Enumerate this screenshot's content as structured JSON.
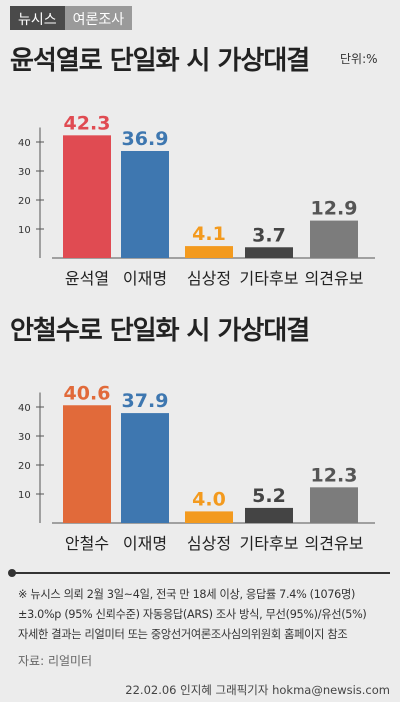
{
  "header": {
    "brand": "뉴시스",
    "category": "여론조사"
  },
  "unit_label": "단위:%",
  "chart_data": [
    {
      "type": "bar",
      "title": "윤석열로 단일화 시 가상대결",
      "categories": [
        "윤석열",
        "이재명",
        "심상정",
        "기타후보",
        "의견유보"
      ],
      "values": [
        42.3,
        36.9,
        4.1,
        3.7,
        12.9
      ],
      "value_labels": [
        "42.3",
        "36.9",
        "4.1",
        "3.7",
        "12.9"
      ],
      "colors": [
        "#e04b52",
        "#3e77b0",
        "#f39a1e",
        "#444444",
        "#7c7c7c"
      ],
      "value_colors": [
        "#e04b52",
        "#3e77b0",
        "#f39a1e",
        "#444444",
        "#555555"
      ],
      "yticks": [
        10,
        20,
        30,
        40
      ],
      "ylim": [
        0,
        45
      ],
      "grid": false
    },
    {
      "type": "bar",
      "title": "안철수로 단일화 시 가상대결",
      "categories": [
        "안철수",
        "이재명",
        "심상정",
        "기타후보",
        "의견유보"
      ],
      "values": [
        40.6,
        37.9,
        4.0,
        5.2,
        12.3
      ],
      "value_labels": [
        "40.6",
        "37.9",
        "4.0",
        "5.2",
        "12.3"
      ],
      "colors": [
        "#e16a3a",
        "#3e77b0",
        "#f39a1e",
        "#444444",
        "#7c7c7c"
      ],
      "value_colors": [
        "#e16a3a",
        "#3e77b0",
        "#f39a1e",
        "#444444",
        "#555555"
      ],
      "yticks": [
        10,
        20,
        30,
        40
      ],
      "ylim": [
        0,
        45
      ],
      "grid": false
    }
  ],
  "notes": [
    "※ 뉴시스 의뢰 2월 3일~4일, 전국 만 18세 이상, 응답률 7.4% (1076명)",
    "±3.0%p (95% 신뢰수준) 자동응답(ARS) 조사 방식, 무선(95%)/유선(5%)",
    "자세한 결과는 리얼미터 또는 중앙선거여론조사심의위원회 홈페이지 참조"
  ],
  "source": "자료: 리얼미터",
  "credit": "22.02.06 인지혜 그래픽기자 hokma@newsis.com"
}
